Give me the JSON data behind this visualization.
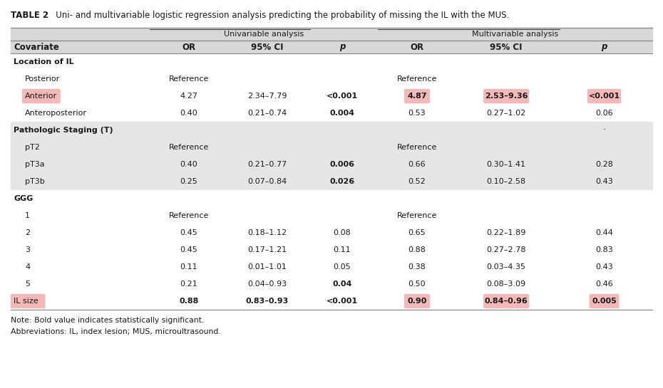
{
  "title_bold": "TABLE 2",
  "title_rest": "   Uni- and multivariable logistic regression analysis predicting the probability of missing the IL with the MUS.",
  "note1": "Note: Bold value indicates statistically significant.",
  "note2": "Abbreviations: IL, index lesion; MUS, microultrasound.",
  "col_headers": [
    "Covariate",
    "OR",
    "95% CI",
    "p",
    "OR",
    "95% CI",
    "p"
  ],
  "rows": [
    {
      "label": "Location of IL",
      "indent": 0,
      "section": true,
      "data": [
        "",
        "",
        "",
        "",
        "",
        ""
      ]
    },
    {
      "label": "Posterior",
      "indent": 1,
      "section": false,
      "data": [
        "Reference",
        "",
        "",
        "Reference",
        "",
        ""
      ]
    },
    {
      "label": "Anterior",
      "indent": 1,
      "section": false,
      "data": [
        "4.27",
        "2.34–7.79",
        "<0.001",
        "4.87",
        "2.53–9.36",
        "<0.001"
      ],
      "label_highlight": true
    },
    {
      "label": "Anteroposterior",
      "indent": 1,
      "section": false,
      "data": [
        "0.40",
        "0.21–0.74",
        "0.004",
        "0.53",
        "0.27–1.02",
        "0.06"
      ]
    },
    {
      "label": "Pathologic Staging (T)",
      "indent": 0,
      "section": true,
      "data": [
        "",
        "",
        "",
        "",
        "",
        ""
      ],
      "dot": true
    },
    {
      "label": "pT2",
      "indent": 1,
      "section": false,
      "data": [
        "Reference",
        "",
        "",
        "Reference",
        "",
        ""
      ]
    },
    {
      "label": "pT3a",
      "indent": 1,
      "section": false,
      "data": [
        "0.40",
        "0.21–0.77",
        "0.006",
        "0.66",
        "0.30–1.41",
        "0.28"
      ]
    },
    {
      "label": "pT3b",
      "indent": 1,
      "section": false,
      "data": [
        "0.25",
        "0.07–0.84",
        "0.026",
        "0.52",
        "0.10–2.58",
        "0.43"
      ]
    },
    {
      "label": "GGG",
      "indent": 0,
      "section": true,
      "data": [
        "",
        "",
        "",
        "",
        "",
        ""
      ],
      "white_section": true
    },
    {
      "label": "1",
      "indent": 1,
      "section": false,
      "data": [
        "Reference",
        "",
        "",
        "Reference",
        "",
        ""
      ]
    },
    {
      "label": "2",
      "indent": 1,
      "section": false,
      "data": [
        "0.45",
        "0.18–1.12",
        "0.08",
        "0.65",
        "0.22–1.89",
        "0.44"
      ]
    },
    {
      "label": "3",
      "indent": 1,
      "section": false,
      "data": [
        "0.45",
        "0.17–1.21",
        "0.11",
        "0.88",
        "0.27–2.78",
        "0.83"
      ]
    },
    {
      "label": "4",
      "indent": 1,
      "section": false,
      "data": [
        "0.11",
        "0.01–1.01",
        "0.05",
        "0.38",
        "0.03–4.35",
        "0.43"
      ]
    },
    {
      "label": "5",
      "indent": 1,
      "section": false,
      "data": [
        "0.21",
        "0.04–0.93",
        "0.04",
        "0.50",
        "0.08–3.09",
        "0.46"
      ]
    },
    {
      "label": "IL size",
      "indent": 0,
      "section": false,
      "data": [
        "0.88",
        "0.83–0.93",
        "<0.001",
        "0.90",
        "0.84–0.96",
        "0.005"
      ],
      "label_highlight": true,
      "row_highlight": true
    }
  ],
  "bold_cells": {
    "2": [
      2,
      3,
      4,
      5
    ],
    "3": [
      2
    ],
    "6": [
      2
    ],
    "7": [
      2
    ],
    "13": [
      2
    ],
    "14": [
      0,
      1,
      2,
      3,
      4,
      5
    ]
  },
  "cell_highlights": {
    "2": [
      3,
      4,
      5
    ],
    "14": [
      3,
      4,
      5
    ]
  },
  "bg_white": "#ffffff",
  "bg_section": "#e6e6e6",
  "bg_header": "#d8d8d8",
  "bg_outer": "#ffffff",
  "highlight_pink": "#f5b8b8",
  "text_dark": "#1a1a1a"
}
